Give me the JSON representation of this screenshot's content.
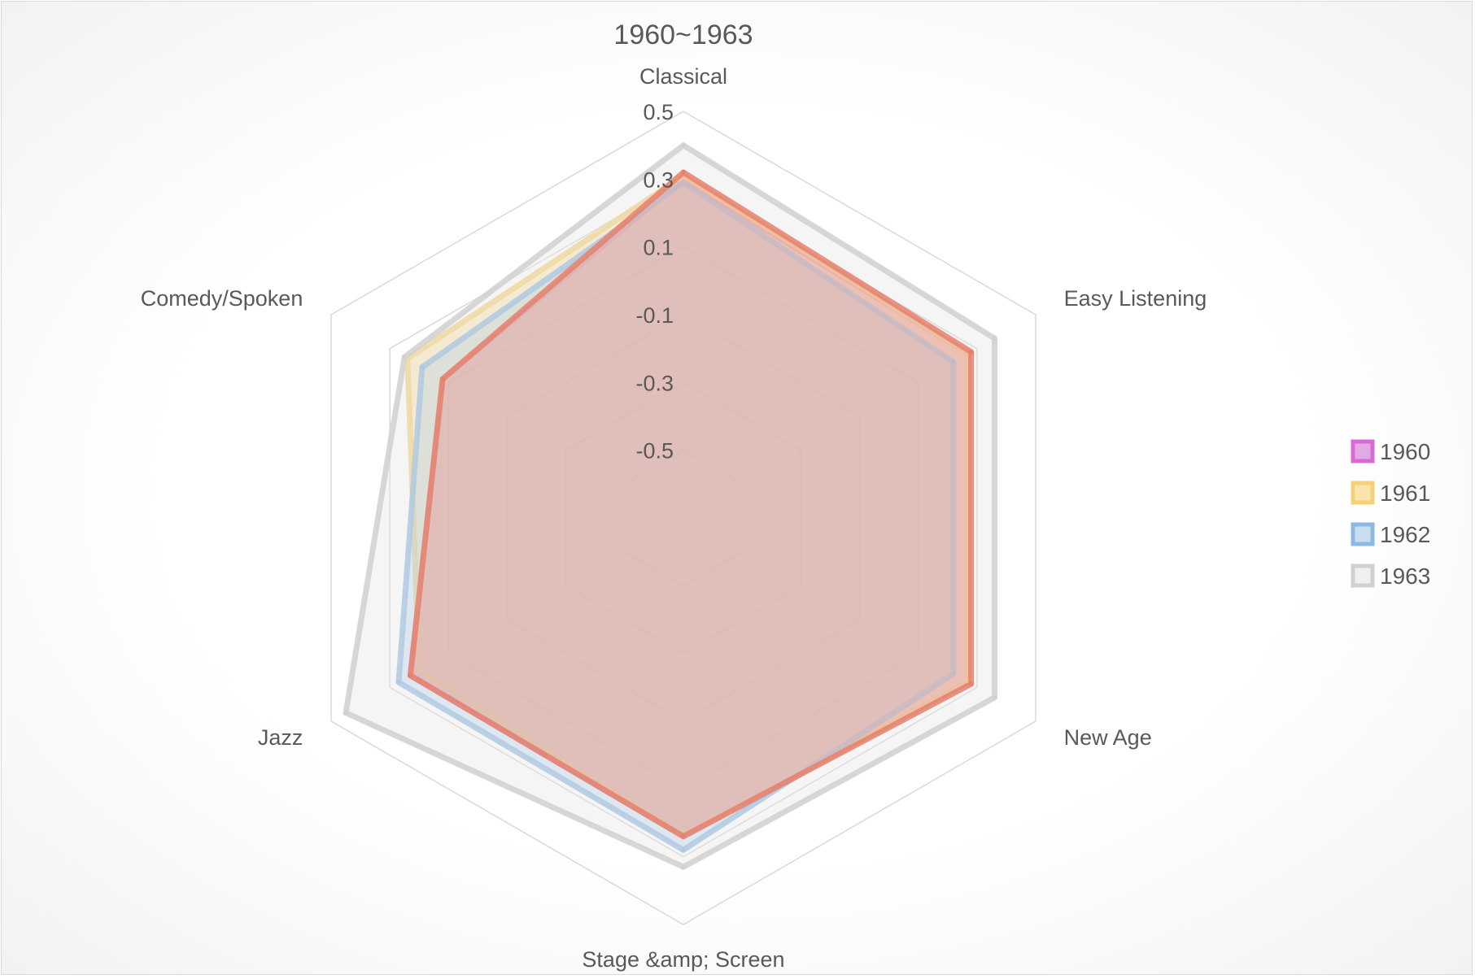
{
  "chart_data": {
    "type": "radar",
    "title": "1960~1963",
    "categories": [
      "Classical",
      "Easy Listening",
      "New Age",
      "Stage &amp; Screen",
      "Jazz",
      "Comedy/Spoken"
    ],
    "axis": {
      "min": -0.7,
      "max": 0.5,
      "step": 0.2,
      "ticks": [
        "-0.5",
        "-0.3",
        "-0.1",
        "0.1",
        "0.3",
        "0.5"
      ]
    },
    "legend_position": "right",
    "series": [
      {
        "name": "1960",
        "values": [
          0.3,
          0.27,
          0.27,
          0.24,
          0.23,
          0.12
        ],
        "stroke": "#d86ad8",
        "fill": "#cc66cc"
      },
      {
        "name": "1961",
        "values": [
          0.31,
          0.27,
          0.27,
          0.24,
          0.2,
          0.24
        ],
        "stroke": "#f5d27a",
        "fill": "#f6d06a"
      },
      {
        "name": "1962",
        "values": [
          0.29,
          0.22,
          0.22,
          0.28,
          0.27,
          0.19
        ],
        "stroke": "#8fb8e0",
        "fill": "#9dc3e6"
      },
      {
        "name": "1963",
        "values": [
          0.4,
          0.36,
          0.36,
          0.33,
          0.45,
          0.25
        ],
        "stroke": "#d0d0d0",
        "fill": "#e4e4e4"
      },
      {
        "name": "",
        "values": [
          0.32,
          0.28,
          0.28,
          0.24,
          0.23,
          0.12
        ],
        "stroke": "#e5806c",
        "fill": "#eda090"
      }
    ]
  }
}
